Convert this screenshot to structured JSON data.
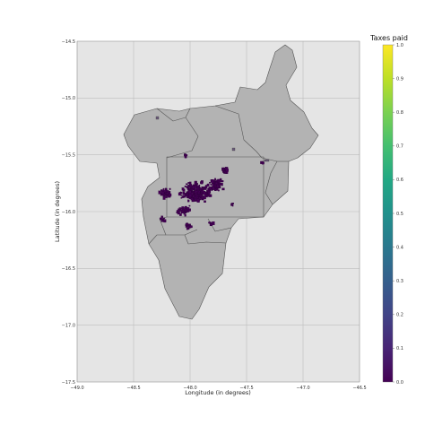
{
  "chart_data": {
    "type": "choropleth-map",
    "title": "",
    "xlabel": "Longitude (in degrees)",
    "ylabel": "Latitude (in degrees)",
    "xlim": [
      -49.0,
      -46.5
    ],
    "ylim": [
      -17.5,
      -14.5
    ],
    "x_ticks": [
      "−49.0",
      "−48.5",
      "−48.0",
      "−47.5",
      "−47.0",
      "−46.5"
    ],
    "x_tick_values": [
      -49.0,
      -48.5,
      -48.0,
      -47.5,
      -47.0,
      -46.5
    ],
    "y_ticks": [
      "−14.5",
      "−15.0",
      "−15.5",
      "−16.0",
      "−16.5",
      "−17.0",
      "−17.5"
    ],
    "y_tick_values": [
      -14.5,
      -15.0,
      -15.5,
      -16.0,
      -16.5,
      -17.0,
      -17.5
    ],
    "grid": true,
    "colorbar": {
      "title": "Taxes paid",
      "colormap": "viridis",
      "range": [
        0.0,
        1.0
      ],
      "ticks": [
        "0.0",
        "0.1",
        "0.2",
        "0.3",
        "0.4",
        "0.5",
        "0.6",
        "0.7",
        "0.8",
        "0.9",
        "1.0"
      ],
      "tick_values": [
        0.0,
        0.1,
        0.2,
        0.3,
        0.4,
        0.5,
        0.6,
        0.7,
        0.8,
        0.9,
        1.0
      ]
    },
    "region_fill": "#b3b3b3",
    "region_edge": "#555555",
    "axes_background": "#e5e5e5",
    "points_color": "#440154",
    "point_value_range": [
      0.0,
      0.1
    ]
  }
}
